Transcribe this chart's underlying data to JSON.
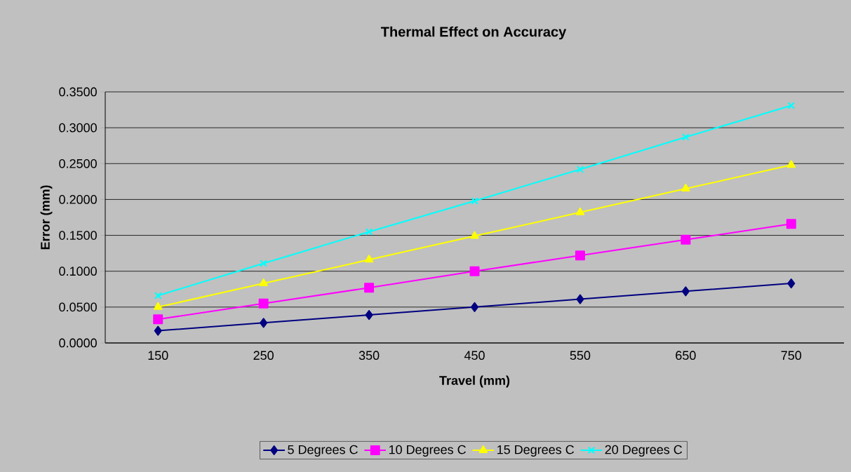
{
  "chart_data": {
    "type": "line",
    "title": "Thermal Effect on Accuracy",
    "xlabel": "Travel (mm)",
    "ylabel": "Error (mm)",
    "categories": [
      "150",
      "250",
      "350",
      "450",
      "550",
      "650",
      "750"
    ],
    "series": [
      {
        "name": "5 Degrees C",
        "color": "#000080",
        "marker": "diamond",
        "values": [
          0.017,
          0.028,
          0.039,
          0.05,
          0.061,
          0.072,
          0.083
        ]
      },
      {
        "name": "10 Degrees C",
        "color": "#ff00ff",
        "marker": "square",
        "values": [
          0.033,
          0.055,
          0.077,
          0.1,
          0.122,
          0.144,
          0.166
        ]
      },
      {
        "name": "15 Degrees C",
        "color": "#ffff00",
        "marker": "triangle",
        "values": [
          0.05,
          0.083,
          0.116,
          0.149,
          0.182,
          0.215,
          0.248
        ]
      },
      {
        "name": "20 Degrees C",
        "color": "#00ffff",
        "marker": "cross",
        "values": [
          0.066,
          0.111,
          0.155,
          0.198,
          0.242,
          0.287,
          0.331
        ]
      }
    ],
    "ylim": [
      0,
      0.35
    ],
    "yticks": [
      {
        "value": 0,
        "label": "0.0000"
      },
      {
        "value": 0.05,
        "label": "0.0500"
      },
      {
        "value": 0.1,
        "label": "0.1000"
      },
      {
        "value": 0.15,
        "label": "0.1500"
      },
      {
        "value": 0.2,
        "label": "0.2000"
      },
      {
        "value": 0.25,
        "label": "0.2500"
      },
      {
        "value": 0.3,
        "label": "0.3000"
      },
      {
        "value": 0.35,
        "label": "0.3500"
      }
    ],
    "grid": "y",
    "legend": "bottom",
    "line_style": "solid"
  }
}
